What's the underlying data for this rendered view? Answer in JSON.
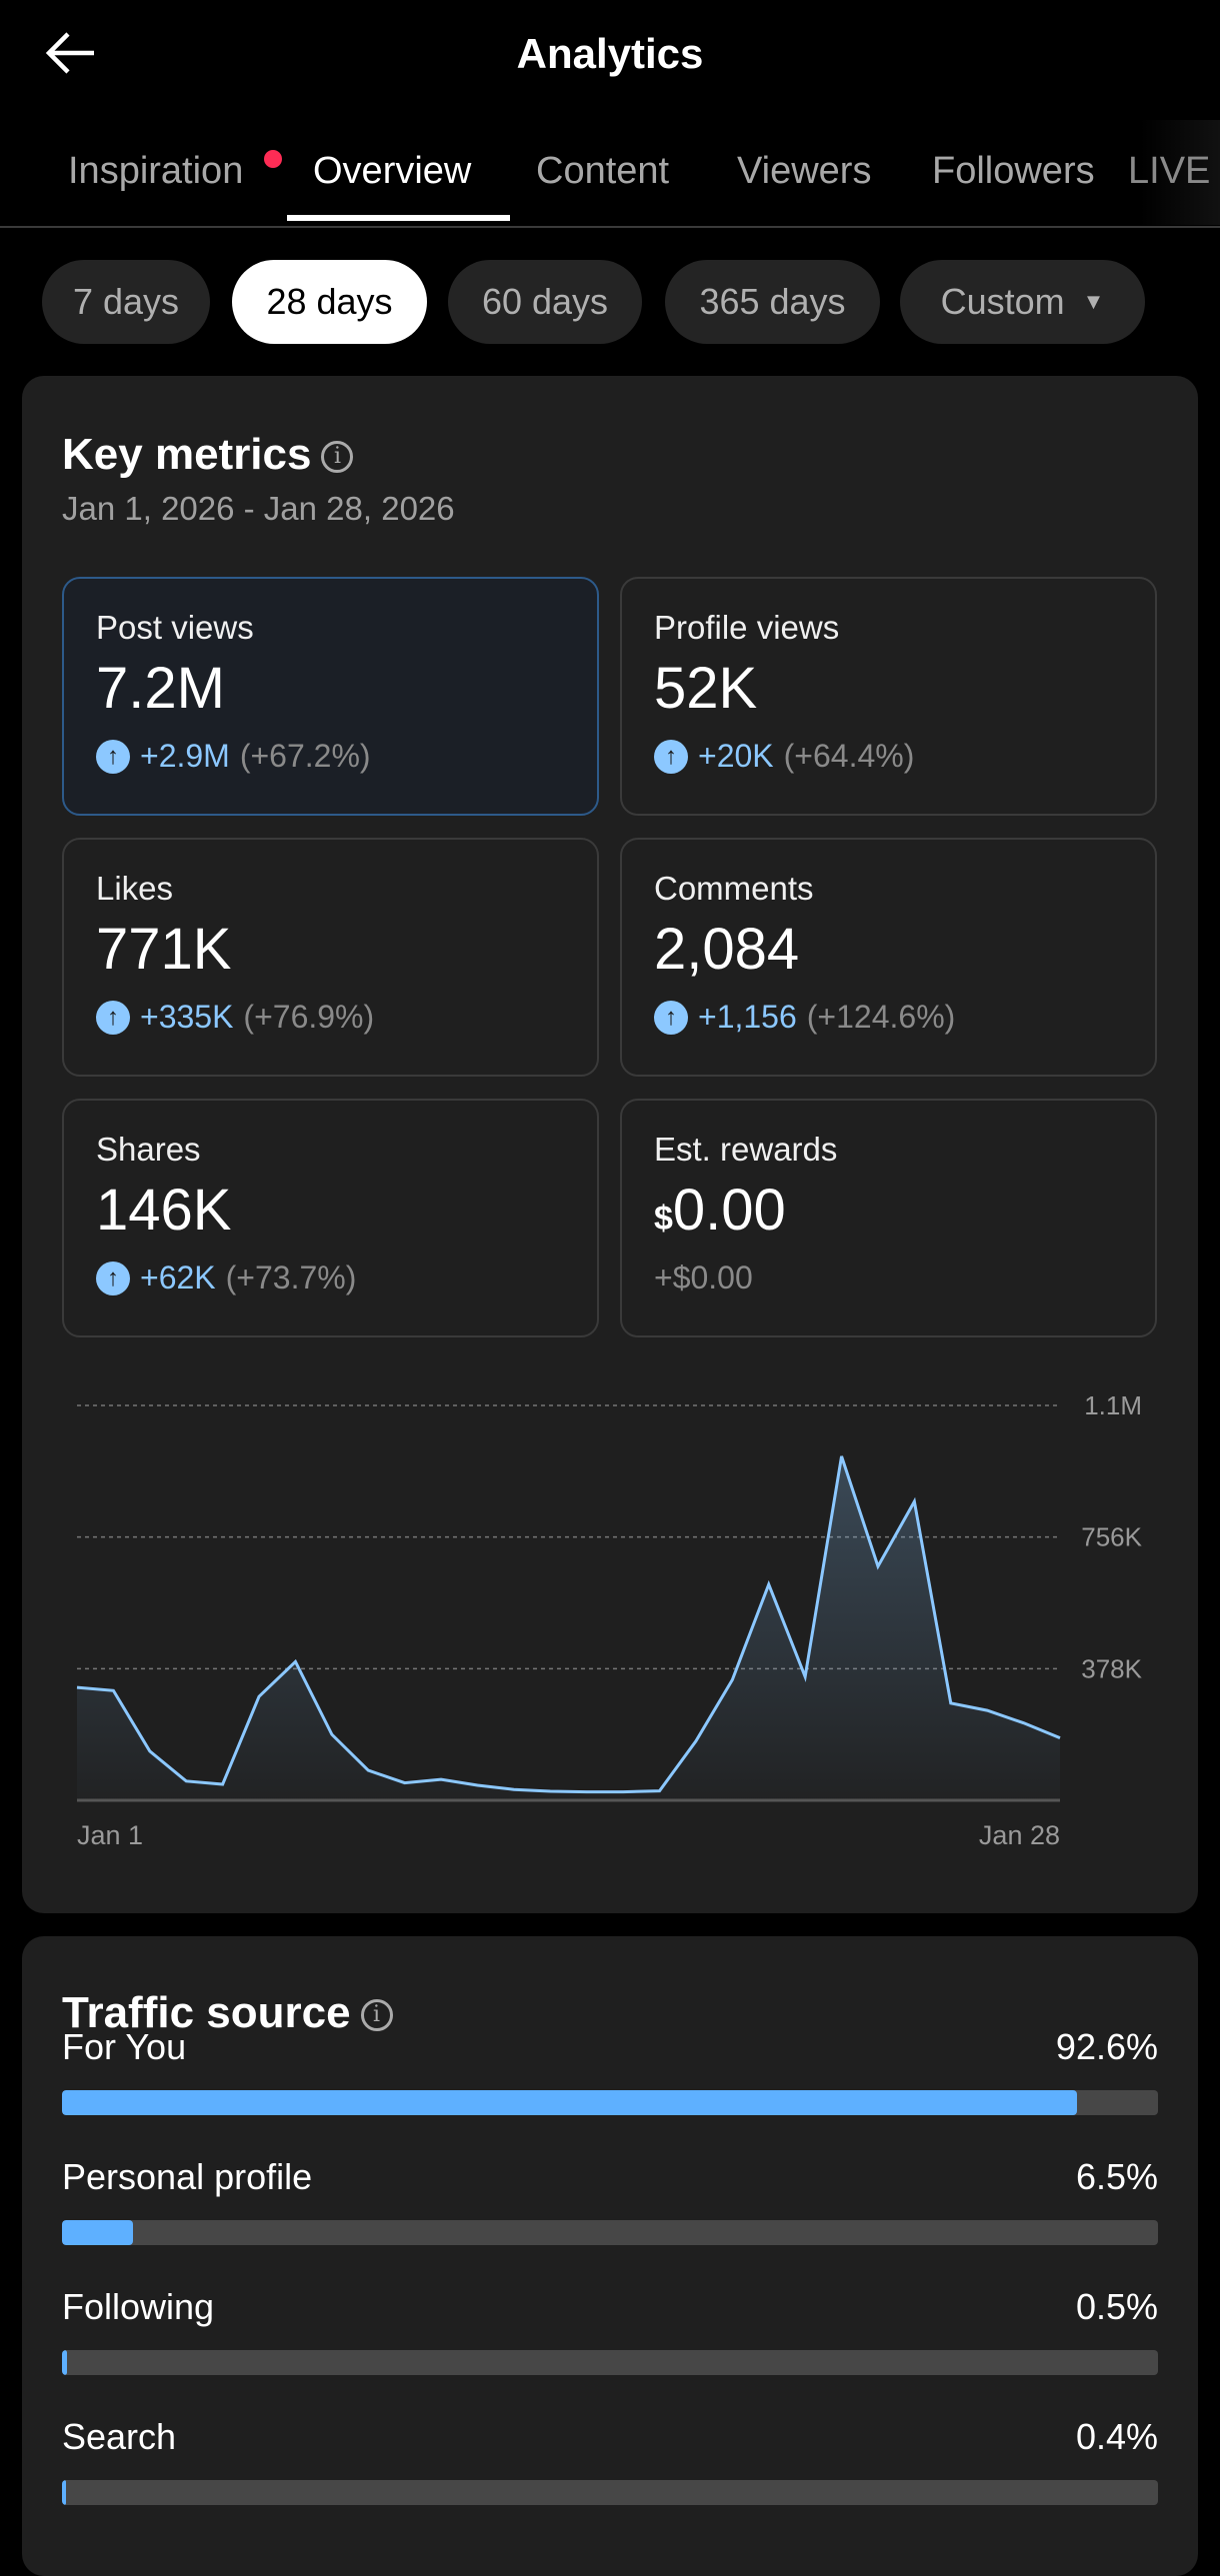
{
  "header": {
    "title": "Analytics",
    "back_icon": "arrow-left-icon"
  },
  "tabs": [
    {
      "label": "Inspiration",
      "badge": true
    },
    {
      "label": "Overview",
      "active": true
    },
    {
      "label": "Content"
    },
    {
      "label": "Viewers"
    },
    {
      "label": "Followers"
    },
    {
      "label": "LIVE"
    }
  ],
  "ranges": [
    {
      "label": "7 days"
    },
    {
      "label": "28 days",
      "active": true
    },
    {
      "label": "60 days"
    },
    {
      "label": "365 days"
    },
    {
      "label": "Custom",
      "dropdown": "▼"
    }
  ],
  "key_metrics": {
    "title": "Key metrics",
    "date_range": "Jan 1, 2026 - Jan 28, 2026",
    "cards": [
      {
        "label": "Post views",
        "value": "7.2M",
        "delta": "+2.9M",
        "pct": "(+67.2%)"
      },
      {
        "label": "Profile views",
        "value": "52K",
        "delta": "+20K",
        "pct": "(+64.4%)"
      },
      {
        "label": "Likes",
        "value": "771K",
        "delta": "+335K",
        "pct": "(+76.9%)"
      },
      {
        "label": "Comments",
        "value": "2,084",
        "delta": "+1,156",
        "pct": "(+124.6%)"
      },
      {
        "label": "Shares",
        "value": "146K",
        "delta": "+62K",
        "pct": "(+73.7%)"
      },
      {
        "label": "Est. rewards",
        "currency": "$",
        "value": "0.00",
        "delta": "+$0.00"
      }
    ]
  },
  "chart_data": {
    "type": "area",
    "series_name": "Post views",
    "x_labels": [
      "Jan 1",
      "Jan 28"
    ],
    "y_ticks": [
      {
        "value": 378000,
        "label": "378K"
      },
      {
        "value": 756000,
        "label": "756K"
      },
      {
        "value": 1134000,
        "label": "1.1M"
      }
    ],
    "ylim": [
      0,
      1134000
    ],
    "accent": "#8cc8ff",
    "values": [
      324000,
      315000,
      141000,
      55000,
      46000,
      298000,
      398000,
      189000,
      86000,
      50000,
      60000,
      43000,
      31000,
      26000,
      24000,
      24000,
      27000,
      170000,
      346000,
      620000,
      355000,
      988000,
      672000,
      858000,
      279000,
      258000,
      222000,
      179000
    ]
  },
  "traffic_source": {
    "title": "Traffic source",
    "rows": [
      {
        "label": "For You",
        "value": "92.6%",
        "fraction": 0.926
      },
      {
        "label": "Personal profile",
        "value": "6.5%",
        "fraction": 0.065
      },
      {
        "label": "Following",
        "value": "0.5%",
        "fraction": 0.005
      },
      {
        "label": "Search",
        "value": "0.4%",
        "fraction": 0.004
      }
    ]
  }
}
